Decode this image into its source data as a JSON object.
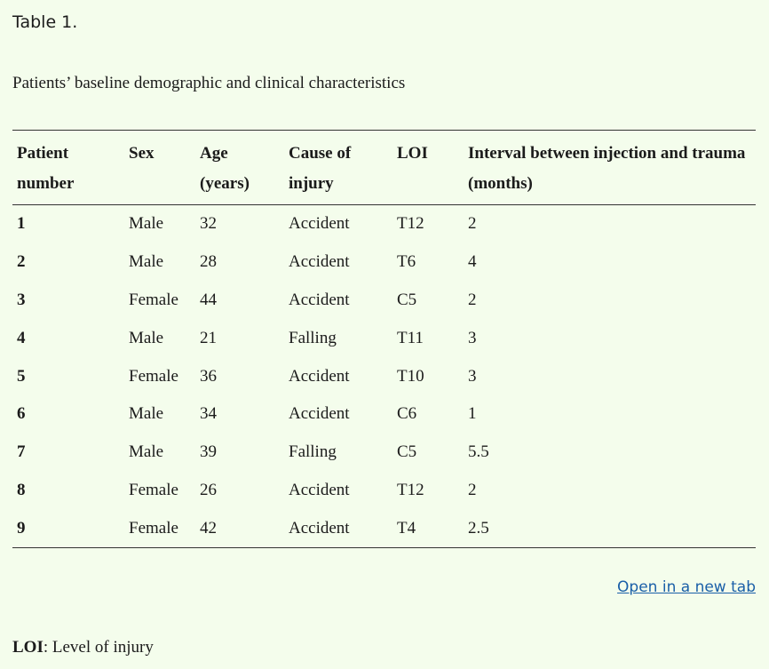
{
  "label": "Table 1.",
  "caption": "Patients’ baseline demographic and clinical characteristics",
  "table": {
    "header": [
      "Patient number",
      "Sex",
      "Age (years)",
      "Cause of injury",
      "LOI",
      "Interval between injection and trauma (months)"
    ],
    "rows": [
      [
        "1",
        "Male",
        "32",
        "Accident",
        "T12",
        "2"
      ],
      [
        "2",
        "Male",
        "28",
        "Accident",
        "T6",
        "4"
      ],
      [
        "3",
        "Female",
        "44",
        "Accident",
        "C5",
        "2"
      ],
      [
        "4",
        "Male",
        "21",
        "Falling",
        "T11",
        "3"
      ],
      [
        "5",
        "Female",
        "36",
        "Accident",
        "T10",
        "3"
      ],
      [
        "6",
        "Male",
        "34",
        "Accident",
        "C6",
        "1"
      ],
      [
        "7",
        "Male",
        "39",
        "Falling",
        "C5",
        "5.5"
      ],
      [
        "8",
        "Female",
        "26",
        "Accident",
        "T12",
        "2"
      ],
      [
        "9",
        "Female",
        "42",
        "Accident",
        "T4",
        "2.5"
      ]
    ]
  },
  "link": "Open in a new tab",
  "footnote": {
    "term": "LOI",
    "text": ": Level of injury"
  }
}
